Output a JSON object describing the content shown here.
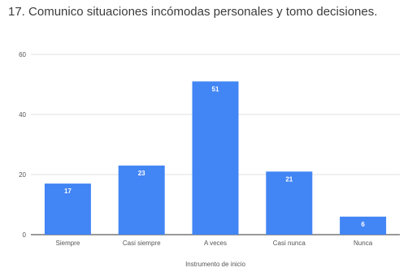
{
  "chart_data": {
    "type": "bar",
    "title": "17. Comunico situaciones incómodas personales y tomo decisiones.",
    "xlabel": "Instrumento de inicio",
    "ylabel": "",
    "categories": [
      "Siempre",
      "Casi siempre",
      "A veces",
      "Casi nunca",
      "Nunca"
    ],
    "values": [
      17,
      23,
      51,
      21,
      6
    ],
    "ylim": [
      0,
      60
    ],
    "yticks": [
      "0",
      "20",
      "40",
      "60"
    ],
    "grid": true,
    "legend": "none",
    "bar_color": "#4285f4",
    "data_labels": true
  }
}
